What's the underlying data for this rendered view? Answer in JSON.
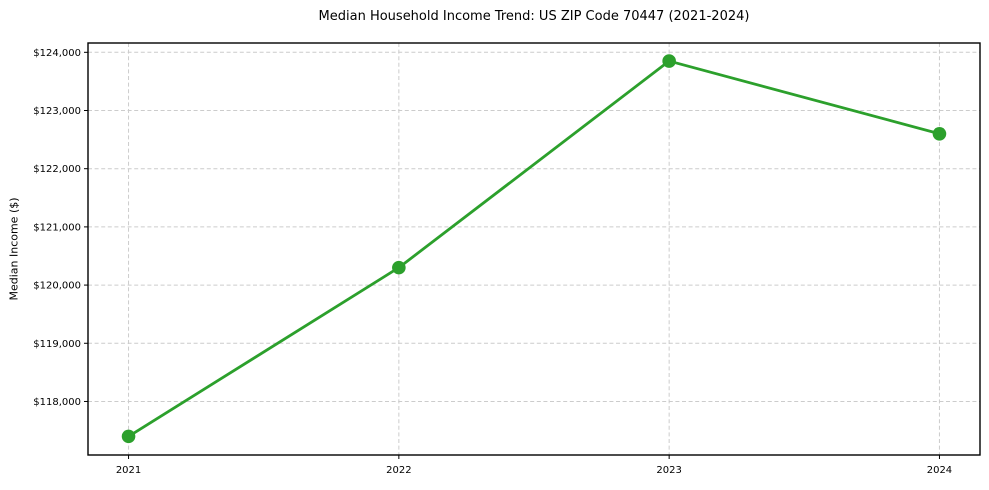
{
  "chart_data": {
    "type": "line",
    "title": "Median Household Income Trend: US ZIP Code 70447 (2021-2024)",
    "xlabel": "",
    "ylabel": "Median Income ($)",
    "categories": [
      "2021",
      "2022",
      "2023",
      "2024"
    ],
    "values": [
      117400,
      120300,
      123850,
      122600
    ],
    "ylim": [
      117080,
      124160
    ],
    "yticks": [
      118000,
      119000,
      120000,
      121000,
      122000,
      123000,
      124000
    ],
    "ytick_labels": [
      "$118,000",
      "$119,000",
      "$120,000",
      "$121,000",
      "$122,000",
      "$123,000",
      "$124,000"
    ],
    "grid": true,
    "grid_style": "dashed",
    "legend": "none",
    "line_color": "#2ca02c",
    "marker": "circle",
    "background": "#ffffff",
    "spine_color": "#000000",
    "grid_color": "#cccccc"
  }
}
